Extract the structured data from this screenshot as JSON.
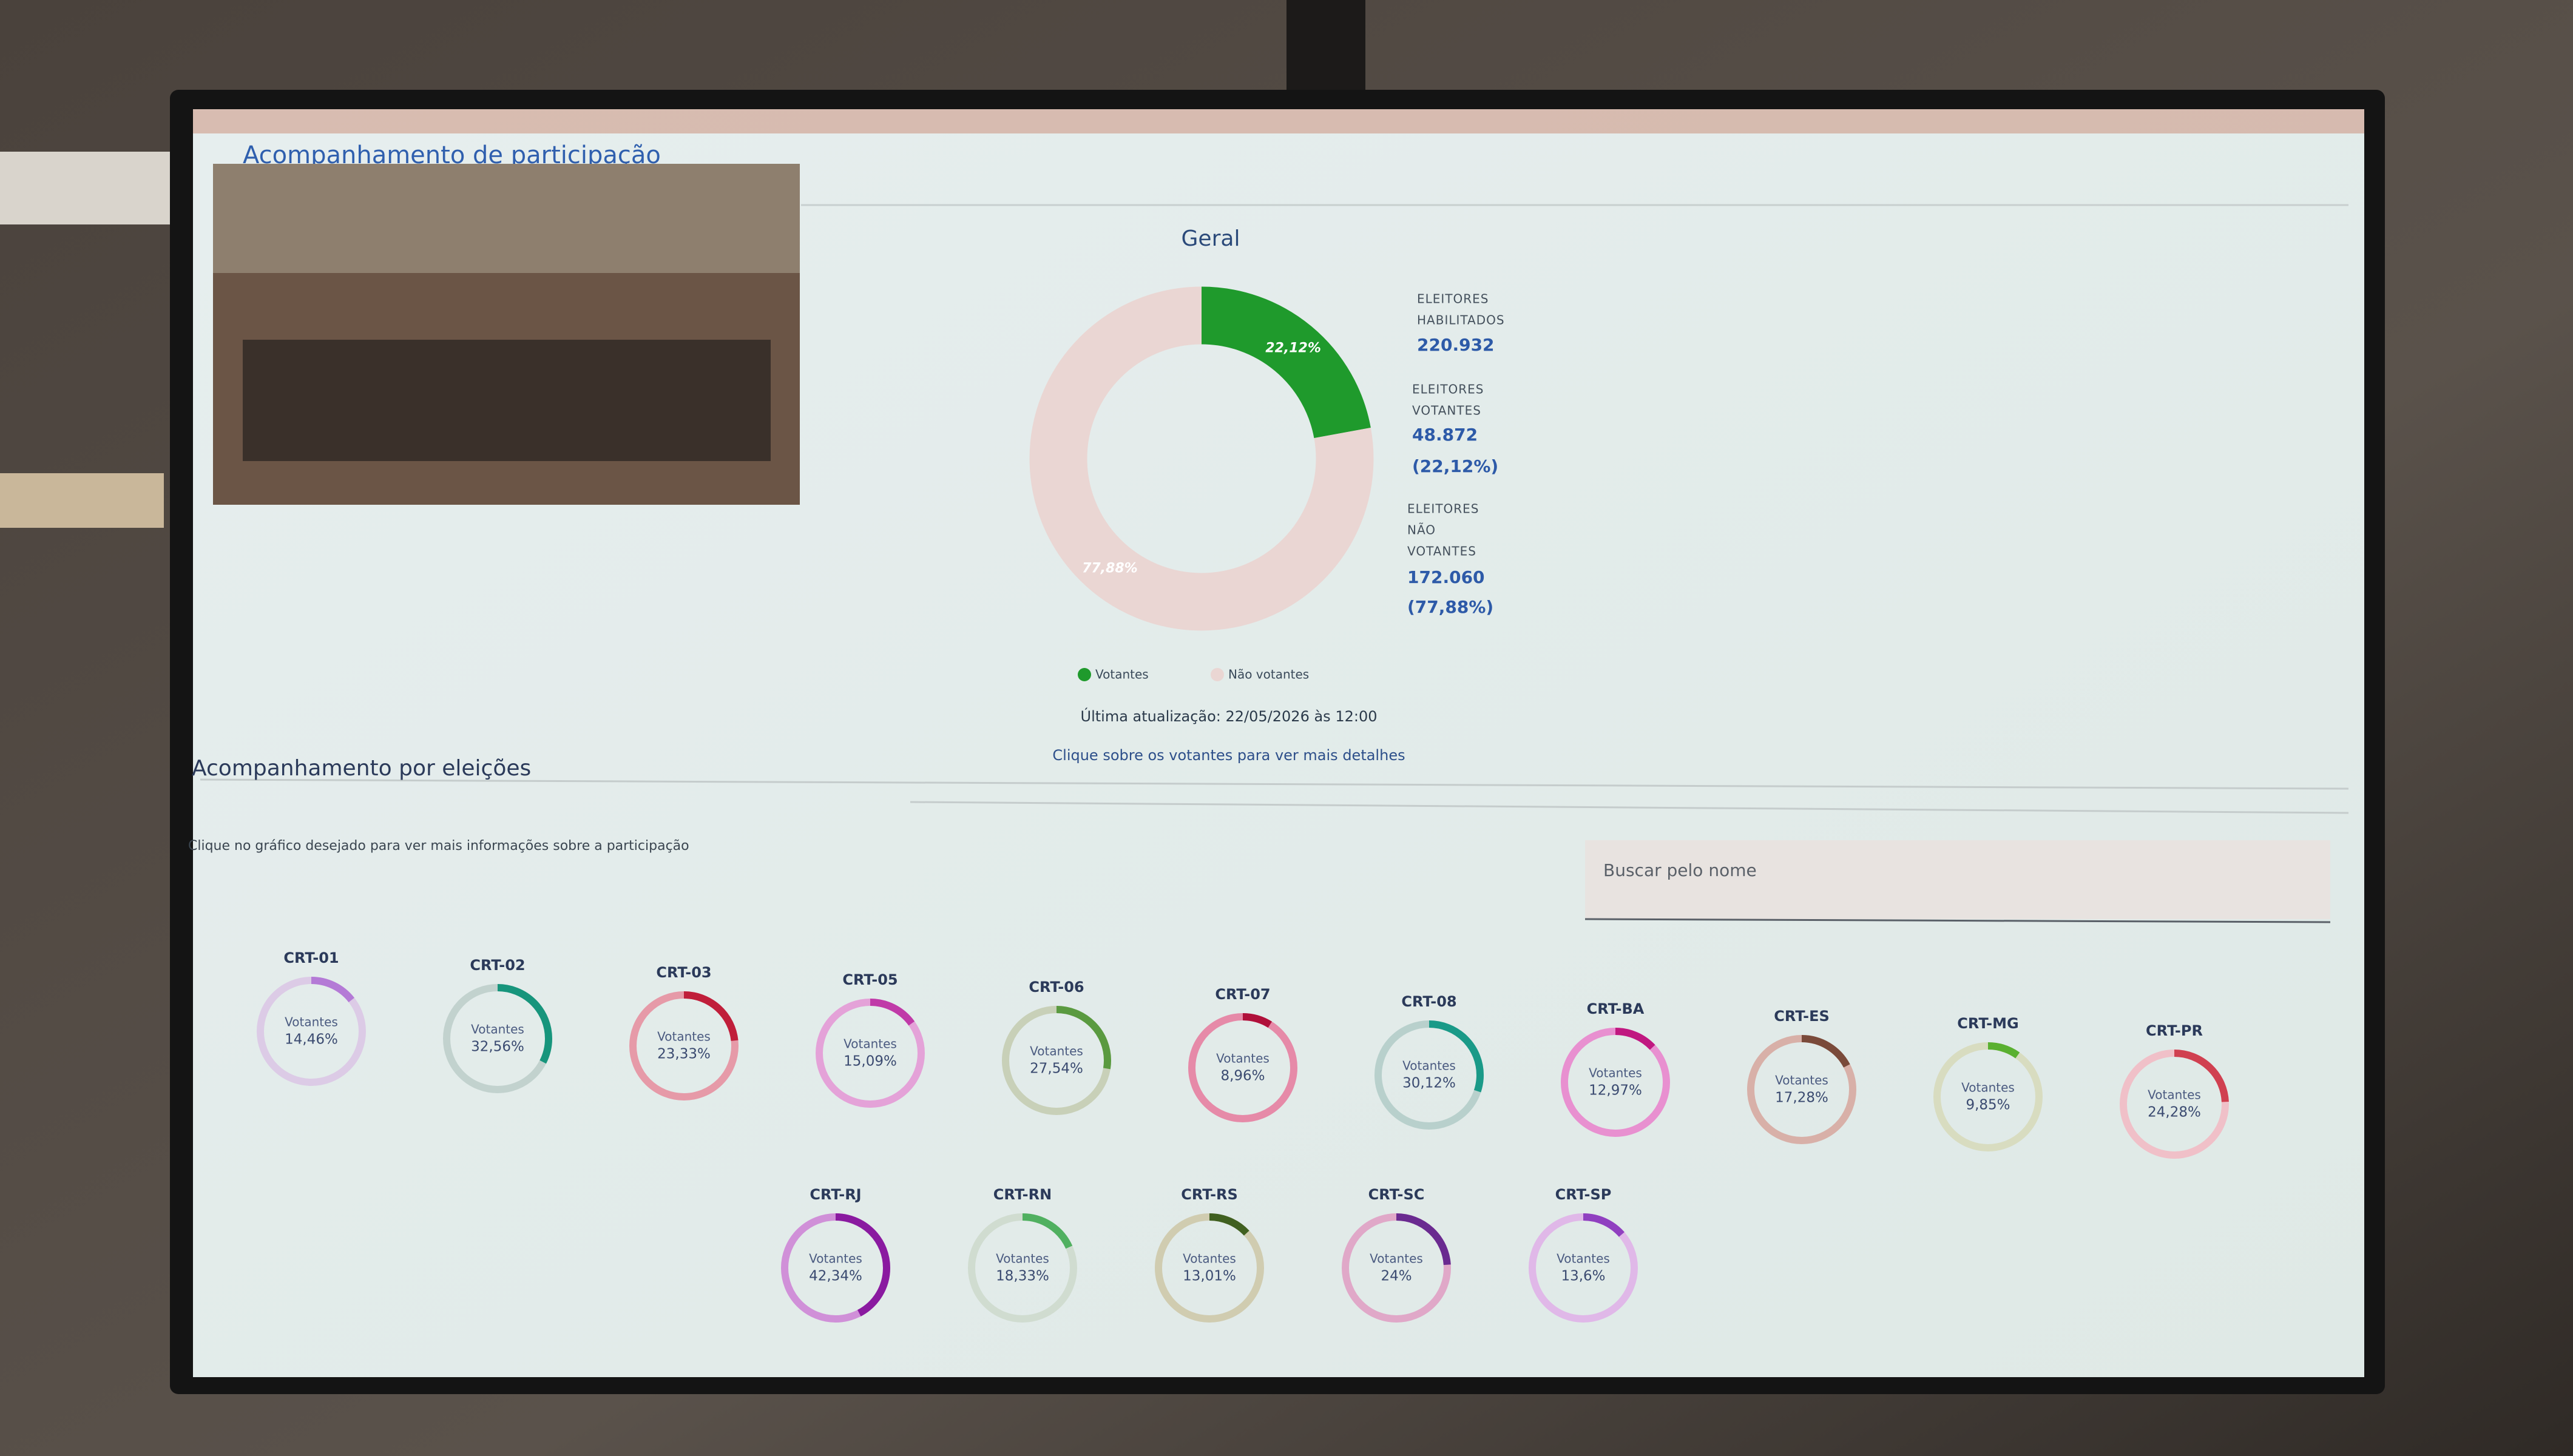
{
  "header": {
    "title": "Acompanhamento de participação"
  },
  "stats": [
    {
      "label": [
        "ELEITORES",
        "HABILITADOS"
      ],
      "value": "220.932"
    },
    {
      "label": [
        "ELEITORES",
        "VOTANTES"
      ],
      "value": "48.872",
      "percent": "(22,12%)"
    },
    {
      "label": [
        "ELEITORES",
        "NÃO",
        "VOTANTES"
      ],
      "value": "172.060",
      "percent": "(77,88%)"
    }
  ],
  "updated": "Última atualização: 22/05/2026 às 12:00",
  "hint": "Clique sobre os votantes para ver mais detalhes",
  "section": {
    "title": "Acompanhamento por eleições",
    "hint": "Clique no gráfico desejado para ver mais informações sobre a participação",
    "search_placeholder": "Buscar pelo nome"
  },
  "chart_data": [
    {
      "type": "donut",
      "title": "Geral",
      "categories": [
        "Votantes",
        "Não votantes"
      ],
      "values": [
        22.12,
        77.88
      ],
      "value_labels": [
        "22,12%",
        "77,88%"
      ],
      "colors": [
        "#1f9a2c",
        "#ead6d3"
      ]
    },
    {
      "type": "ring",
      "title": "CRT-01",
      "center_label": "Votantes",
      "values": [
        14.46
      ],
      "value_labels": [
        "14,46%"
      ],
      "color": "#b47ad6",
      "track_color": "#dccbe6"
    },
    {
      "type": "ring",
      "title": "CRT-02",
      "center_label": "Votantes",
      "values": [
        32.56
      ],
      "value_labels": [
        "32,56%"
      ],
      "color": "#17957c",
      "track_color": "#c2d2ce"
    },
    {
      "type": "ring",
      "title": "CRT-03",
      "center_label": "Votantes",
      "values": [
        23.33
      ],
      "value_labels": [
        "23,33%"
      ],
      "color": "#c01e3a",
      "track_color": "#e69aa8"
    },
    {
      "type": "ring",
      "title": "CRT-05",
      "center_label": "Votantes",
      "values": [
        15.09
      ],
      "value_labels": [
        "15,09%"
      ],
      "color": "#c03aa8",
      "track_color": "#e4a2d8"
    },
    {
      "type": "ring",
      "title": "CRT-06",
      "center_label": "Votantes",
      "values": [
        27.54
      ],
      "value_labels": [
        "27,54%"
      ],
      "color": "#5a9a40",
      "track_color": "#c8d0b8"
    },
    {
      "type": "ring",
      "title": "CRT-07",
      "center_label": "Votantes",
      "values": [
        8.96
      ],
      "value_labels": [
        "8,96%"
      ],
      "color": "#b0103a",
      "track_color": "#e68aa8"
    },
    {
      "type": "ring",
      "title": "CRT-08",
      "center_label": "Votantes",
      "values": [
        30.12
      ],
      "value_labels": [
        "30,12%"
      ],
      "color": "#1a9a88",
      "track_color": "#b8d0cc"
    },
    {
      "type": "ring",
      "title": "CRT-BA",
      "center_label": "Votantes",
      "values": [
        12.97
      ],
      "value_labels": [
        "12,97%"
      ],
      "color": "#c01880",
      "track_color": "#e890d0"
    },
    {
      "type": "ring",
      "title": "CRT-ES",
      "center_label": "Votantes",
      "values": [
        17.28
      ],
      "value_labels": [
        "17,28%"
      ],
      "color": "#7a4a3a",
      "track_color": "#d8b0a8"
    },
    {
      "type": "ring",
      "title": "CRT-MG",
      "center_label": "Votantes",
      "values": [
        9.85
      ],
      "value_labels": [
        "9,85%"
      ],
      "color": "#5ab030",
      "track_color": "#d8dcc0"
    },
    {
      "type": "ring",
      "title": "CRT-PR",
      "center_label": "Votantes",
      "values": [
        24.28
      ],
      "value_labels": [
        "24,28%"
      ],
      "color": "#d04050",
      "track_color": "#f0c0c8"
    },
    {
      "type": "ring",
      "title": "CRT-RJ",
      "center_label": "Votantes",
      "values": [
        42.34
      ],
      "value_labels": [
        "42,34%"
      ],
      "color": "#8a1aa0",
      "track_color": "#d090d8"
    },
    {
      "type": "ring",
      "title": "CRT-RN",
      "center_label": "Votantes",
      "values": [
        18.33
      ],
      "value_labels": [
        "18,33%"
      ],
      "color": "#50b060",
      "track_color": "#d0dcd0"
    },
    {
      "type": "ring",
      "title": "CRT-RS",
      "center_label": "Votantes",
      "values": [
        13.01
      ],
      "value_labels": [
        "13,01%"
      ],
      "color": "#406020",
      "track_color": "#d0ccb0"
    },
    {
      "type": "ring",
      "title": "CRT-SC",
      "center_label": "Votantes",
      "values": [
        24
      ],
      "value_labels": [
        "24%"
      ],
      "color": "#6a2a90",
      "track_color": "#e0a8c8"
    },
    {
      "type": "ring",
      "title": "CRT-SP",
      "center_label": "Votantes",
      "values": [
        13.6
      ],
      "value_labels": [
        "13,6%"
      ],
      "color": "#9040c0",
      "track_color": "#e0b8e8"
    }
  ]
}
